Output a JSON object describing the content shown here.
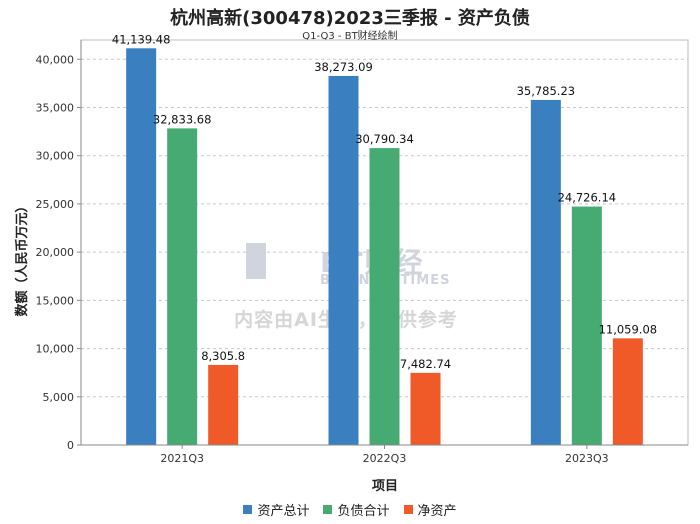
{
  "header": {
    "title": "杭州高新(300478)2023三季报 - 资产负债",
    "subtitle": "Q1-Q3 - BT财经绘制"
  },
  "watermark": {
    "brand": "BT财经",
    "brand_sub": "BUSINESSTIMES",
    "notice": "内容由AI生成，仅供参考"
  },
  "chart_data": {
    "type": "bar",
    "title": "杭州高新(300478)2023三季报 - 资产负债",
    "subtitle": "Q1-Q3 - BT财经绘制",
    "xlabel": "项目",
    "ylabel": "数额（人民币万元）",
    "categories": [
      "2021Q3",
      "2022Q3",
      "2023Q3"
    ],
    "ylim": [
      0,
      42000
    ],
    "yticks": [
      0,
      5000,
      10000,
      15000,
      20000,
      25000,
      30000,
      35000,
      40000
    ],
    "grid": true,
    "legend_position": "bottom-center",
    "series": [
      {
        "name": "资产总计",
        "color": "#3a7fbf",
        "values": [
          41139.48,
          38273.09,
          35785.23
        ],
        "labels": [
          "41,139.48",
          "38,273.09",
          "35,785.23"
        ]
      },
      {
        "name": "负债合计",
        "color": "#45ab73",
        "values": [
          32833.68,
          30790.34,
          24726.14
        ],
        "labels": [
          "32,833.68",
          "30,790.34",
          "24,726.14"
        ]
      },
      {
        "name": "净资产",
        "color": "#f05a28",
        "values": [
          8305.8,
          7482.74,
          11059.08
        ],
        "labels": [
          "8,305.8",
          "7,482.74",
          "11,059.08"
        ]
      }
    ]
  }
}
